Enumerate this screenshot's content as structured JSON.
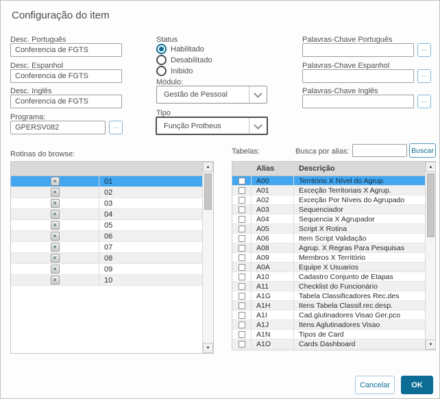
{
  "dialog": {
    "title": "Configuração do item"
  },
  "form": {
    "descriptions": [
      {
        "label": "Desc. Português",
        "value": "Conferencia de FGTS"
      },
      {
        "label": "Desc. Espanhol",
        "value": "Conferencia de FGTS"
      },
      {
        "label": "Desc. Inglês",
        "value": "Conferencia de FGTS"
      }
    ],
    "programa": {
      "label": "Programa:",
      "value": "GPERSV082",
      "browse_label": "..."
    },
    "status": {
      "label": "Status",
      "options": [
        {
          "label": "Habilitado",
          "selected": true
        },
        {
          "label": "Desabilitado",
          "selected": false
        },
        {
          "label": "Inibido",
          "selected": false
        }
      ]
    },
    "modulo": {
      "label": "Módulo:",
      "value": "Gestão de Pessoal"
    },
    "tipo": {
      "label": "Tipo",
      "value": "Função Protheus"
    },
    "keywords": [
      {
        "label": "Palavras-Chave Português",
        "value": "",
        "browse_label": "..."
      },
      {
        "label": "Palavras-Chave Espanhol",
        "value": "",
        "browse_label": "..."
      },
      {
        "label": "Palavras-Chave Inglês",
        "value": "",
        "browse_label": "..."
      }
    ]
  },
  "rotinas": {
    "label": "Rotinas do browse:",
    "rows": [
      {
        "order": "01",
        "selected": true
      },
      {
        "order": "02",
        "selected": false
      },
      {
        "order": "03",
        "selected": false
      },
      {
        "order": "04",
        "selected": false
      },
      {
        "order": "05",
        "selected": false
      },
      {
        "order": "06",
        "selected": false
      },
      {
        "order": "07",
        "selected": false
      },
      {
        "order": "08",
        "selected": false
      },
      {
        "order": "09",
        "selected": false
      },
      {
        "order": "10",
        "selected": false
      }
    ]
  },
  "tabelas": {
    "label": "Tabelas:",
    "search_label": "Busca por alias:",
    "search_value": "",
    "search_button_label": "Buscar",
    "columns": [
      "Alias",
      "Descrição"
    ],
    "rows": [
      {
        "alias": "A00",
        "desc": "Território X Nível do Agrup.",
        "selected": true,
        "checked": false
      },
      {
        "alias": "A01",
        "desc": "Exceção Territoriais X Agrup.",
        "selected": false,
        "checked": false
      },
      {
        "alias": "A02",
        "desc": "Exceção Por Níveis do Agrupado",
        "selected": false,
        "checked": false
      },
      {
        "alias": "A03",
        "desc": "Sequenciador",
        "selected": false,
        "checked": false
      },
      {
        "alias": "A04",
        "desc": "Sequencia X Agrupador",
        "selected": false,
        "checked": false
      },
      {
        "alias": "A05",
        "desc": "Script X Rotina",
        "selected": false,
        "checked": false
      },
      {
        "alias": "A06",
        "desc": "Item Script Validação",
        "selected": false,
        "checked": false
      },
      {
        "alias": "A08",
        "desc": "Agrup. X Regras Para Pesquisas",
        "selected": false,
        "checked": false
      },
      {
        "alias": "A09",
        "desc": "Membros X Território",
        "selected": false,
        "checked": false
      },
      {
        "alias": "A0A",
        "desc": "Equipe X Usuarios",
        "selected": false,
        "checked": false
      },
      {
        "alias": "A10",
        "desc": "Cadastro Conjunto de Etapas",
        "selected": false,
        "checked": false
      },
      {
        "alias": "A11",
        "desc": "Checklist do Funcionário",
        "selected": false,
        "checked": false
      },
      {
        "alias": "A1G",
        "desc": "Tabela Classificadores Rec.des",
        "selected": false,
        "checked": false
      },
      {
        "alias": "A1H",
        "desc": "Itens Tabela Classif.rec.desp.",
        "selected": false,
        "checked": false
      },
      {
        "alias": "A1I",
        "desc": "Cad.glutinadores Visao Ger.pco",
        "selected": false,
        "checked": false
      },
      {
        "alias": "A1J",
        "desc": "Itens Aglutinadores Visao",
        "selected": false,
        "checked": false
      },
      {
        "alias": "A1N",
        "desc": "Tipos de Card",
        "selected": false,
        "checked": false
      },
      {
        "alias": "A1O",
        "desc": "Cards Dashboard",
        "selected": false,
        "checked": false
      }
    ]
  },
  "footer": {
    "cancel_label": "Cancelar",
    "ok_label": "OK"
  },
  "colors": {
    "primary": "#0c6c94",
    "row_selection": "#42a6f0",
    "table_header_bg": "#d9d9d9",
    "browse_button_border": "#7fb6d9"
  }
}
